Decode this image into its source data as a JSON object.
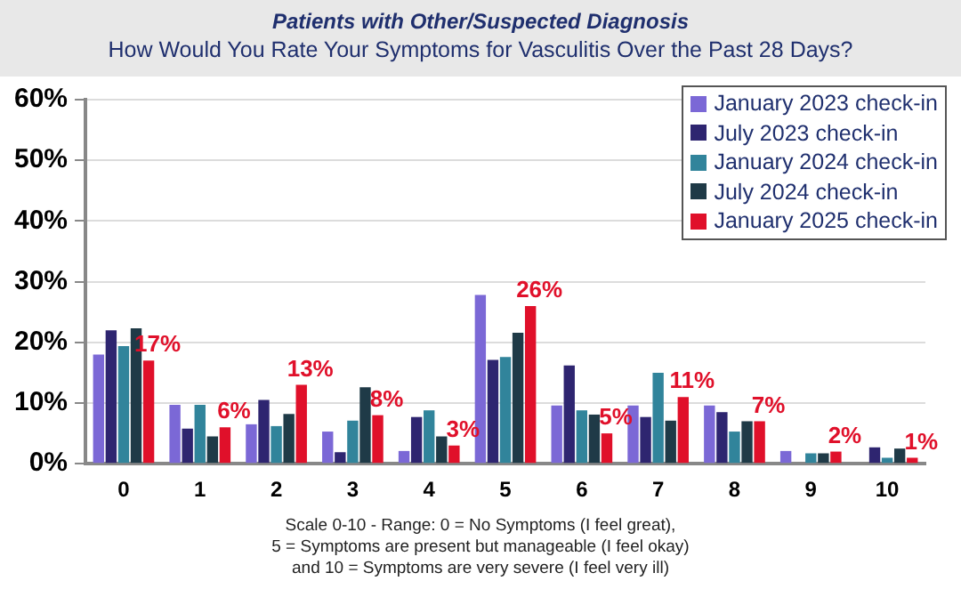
{
  "chart_data": {
    "type": "bar",
    "title": "Patients with Other/Suspected Diagnosis",
    "subtitle": "How Would You Rate Your Symptoms for Vasculitis Over the Past 28 Days?",
    "categories": [
      "0",
      "1",
      "2",
      "3",
      "4",
      "5",
      "6",
      "7",
      "8",
      "9",
      "10"
    ],
    "series": [
      {
        "name": "January 2023 check-in",
        "color": "#7b68d6",
        "values": [
          18,
          9.7,
          6.5,
          5.3,
          2.1,
          27.8,
          9.6,
          9.6,
          9.6,
          2.1,
          0
        ]
      },
      {
        "name": "July 2023 check-in",
        "color": "#2e2570",
        "values": [
          22,
          5.8,
          10.5,
          1.9,
          7.7,
          17.1,
          16.2,
          7.7,
          8.5,
          0,
          2.7
        ]
      },
      {
        "name": "January 2024 check-in",
        "color": "#31849b",
        "values": [
          19.4,
          9.7,
          6.2,
          7.1,
          8.8,
          17.6,
          8.8,
          15,
          5.3,
          1.7,
          1
        ]
      },
      {
        "name": "July 2024 check-in",
        "color": "#1f3a47",
        "values": [
          22.3,
          4.5,
          8.2,
          12.6,
          4.5,
          21.6,
          8.1,
          7.1,
          7,
          1.7,
          2.5
        ]
      },
      {
        "name": "January 2025 check-in",
        "color": "#e0102a",
        "values": [
          17,
          6,
          13,
          8,
          3,
          26,
          5,
          11,
          7,
          2,
          1
        ],
        "value_labels": [
          "17%",
          "6%",
          "13%",
          "8%",
          "3%",
          "26%",
          "5%",
          "11%",
          "7%",
          "2%",
          "1%"
        ]
      }
    ],
    "ylim": [
      0,
      60
    ],
    "yticks": [
      {
        "value": 0,
        "label": "0%"
      },
      {
        "value": 10,
        "label": "10%"
      },
      {
        "value": 20,
        "label": "20%"
      },
      {
        "value": 30,
        "label": "30%"
      },
      {
        "value": 40,
        "label": "40%"
      },
      {
        "value": 50,
        "label": "50%"
      },
      {
        "value": 60,
        "label": "60%"
      }
    ],
    "grid": "y",
    "legend": "top right",
    "annotations": [
      "Scale 0-10 - Range: 0 = No Symptoms  (I feel great),",
      "5 = Symptoms  are present but manageable (I feel okay)",
      "and 10 = Symptoms  are very severe (I feel very ill)"
    ]
  }
}
